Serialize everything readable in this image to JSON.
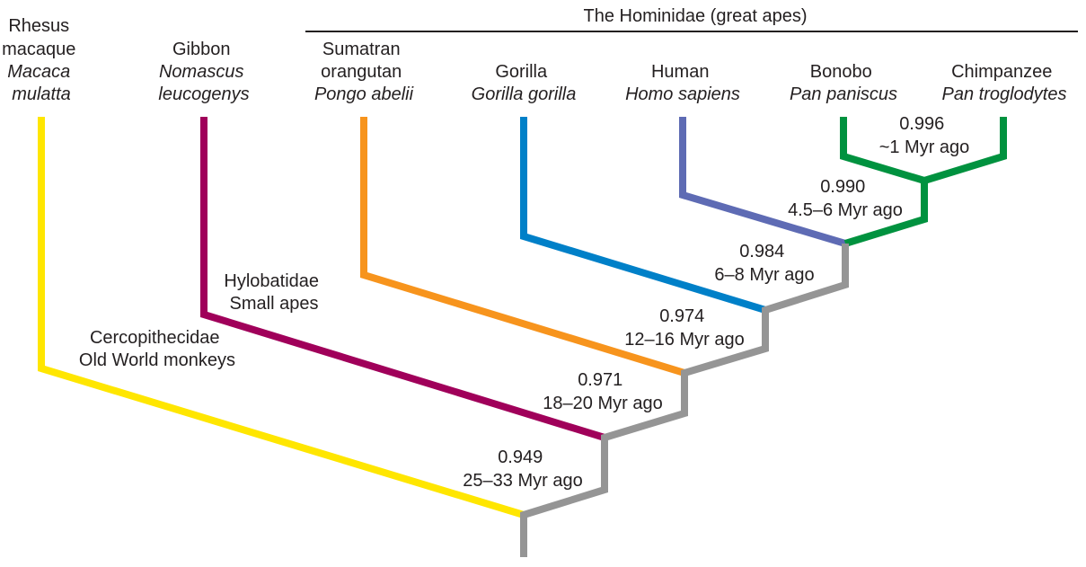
{
  "header": {
    "label": "The Hominidae (great apes)"
  },
  "species": [
    {
      "common": [
        "Rhesus",
        "macaque"
      ],
      "latin": [
        "Macaca",
        "mulatta"
      ],
      "color": "#ffe600"
    },
    {
      "common": [
        "Gibbon"
      ],
      "latin": [
        "Nomascus",
        "leucogenys"
      ],
      "color": "#a0005a"
    },
    {
      "common": [
        "Sumatran",
        "orangutan"
      ],
      "latin": [
        "Pongo abelii"
      ],
      "color": "#f7941d"
    },
    {
      "common": [
        "Gorilla"
      ],
      "latin": [
        "Gorilla gorilla"
      ],
      "color": "#0080c8"
    },
    {
      "common": [
        "Human"
      ],
      "latin": [
        "Homo sapiens"
      ],
      "color": "#5e6bb4"
    },
    {
      "common": [
        "Bonobo"
      ],
      "latin": [
        "Pan paniscus"
      ],
      "color": "#00923f"
    },
    {
      "common": [
        "Chimpanzee"
      ],
      "latin": [
        "Pan troglodytes"
      ],
      "color": "#00923f"
    }
  ],
  "groups": {
    "cercopithecidae": [
      "Cercopithecidae",
      "Old World monkeys"
    ],
    "hylobatidae": [
      "Hylobatidae",
      "Small apes"
    ]
  },
  "nodes": [
    {
      "similarity": "0.949",
      "divergence": "25–33 Myr ago"
    },
    {
      "similarity": "0.971",
      "divergence": "18–20 Myr ago"
    },
    {
      "similarity": "0.974",
      "divergence": "12–16 Myr ago"
    },
    {
      "similarity": "0.984",
      "divergence": "6–8 Myr ago"
    },
    {
      "similarity": "0.990",
      "divergence": "4.5–6 Myr ago"
    },
    {
      "similarity": "0.996",
      "divergence": "~1 Myr ago"
    }
  ],
  "colors": {
    "trunk": "#959595",
    "text": "#231f20"
  }
}
